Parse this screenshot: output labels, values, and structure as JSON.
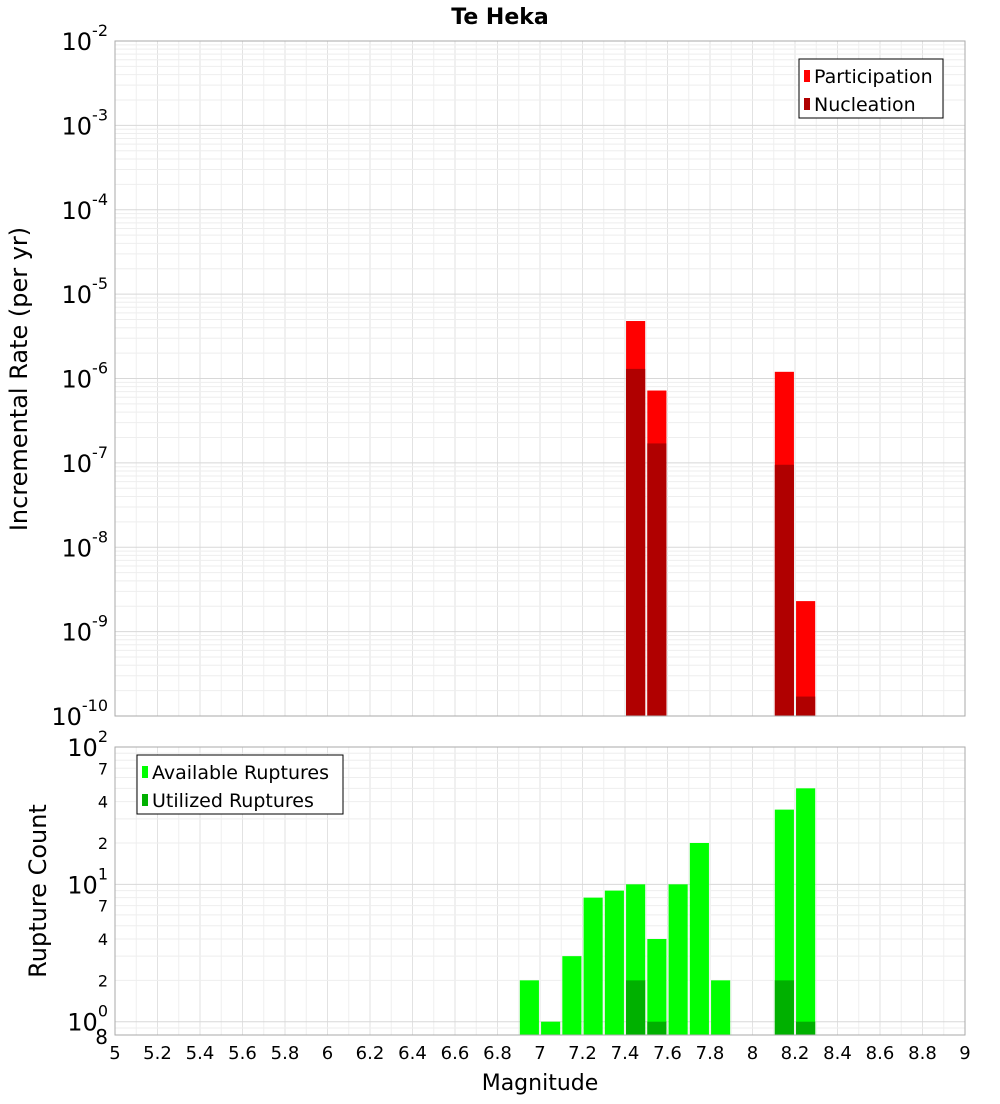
{
  "title": "Te Heka",
  "chart_data": [
    {
      "type": "bar",
      "ylabel": "Incremental Rate (per yr)",
      "yscale": "log",
      "ylim": [
        1e-10,
        0.01
      ],
      "xlim": [
        5,
        9
      ],
      "grid": true,
      "legend_position": "top-right",
      "series": [
        {
          "name": "Participation",
          "color": "#ff0000",
          "points": [
            {
              "x": 7.45,
              "y": 4.8e-06
            },
            {
              "x": 7.55,
              "y": 7.2e-07
            },
            {
              "x": 8.15,
              "y": 1.2e-06
            },
            {
              "x": 8.25,
              "y": 2.3e-09
            }
          ]
        },
        {
          "name": "Nucleation",
          "color": "#b00000",
          "points": [
            {
              "x": 7.45,
              "y": 1.3e-06
            },
            {
              "x": 7.55,
              "y": 1.7e-07
            },
            {
              "x": 8.15,
              "y": 9.5e-08
            },
            {
              "x": 8.25,
              "y": 1.7e-10
            }
          ]
        }
      ],
      "y_major_ticks": [
        {
          "value": 1e-10,
          "base": "10",
          "exp": "-10"
        },
        {
          "value": 1e-09,
          "base": "10",
          "exp": "-9"
        },
        {
          "value": 1e-08,
          "base": "10",
          "exp": "-8"
        },
        {
          "value": 1e-07,
          "base": "10",
          "exp": "-7"
        },
        {
          "value": 1e-06,
          "base": "10",
          "exp": "-6"
        },
        {
          "value": 1e-05,
          "base": "10",
          "exp": "-5"
        },
        {
          "value": 0.0001,
          "base": "10",
          "exp": "-4"
        },
        {
          "value": 0.001,
          "base": "10",
          "exp": "-3"
        },
        {
          "value": 0.01,
          "base": "10",
          "exp": "-2"
        }
      ]
    },
    {
      "type": "bar",
      "xlabel": "Magnitude",
      "ylabel": "Rupture Count",
      "yscale": "log",
      "ylim": [
        0.8,
        100
      ],
      "xlim": [
        5,
        9
      ],
      "grid": true,
      "legend_position": "top-left",
      "series": [
        {
          "name": "Available Ruptures",
          "color": "#00ff00",
          "points": [
            {
              "x": 6.95,
              "y": 2
            },
            {
              "x": 7.05,
              "y": 1
            },
            {
              "x": 7.15,
              "y": 3
            },
            {
              "x": 7.25,
              "y": 8
            },
            {
              "x": 7.35,
              "y": 9
            },
            {
              "x": 7.45,
              "y": 10
            },
            {
              "x": 7.55,
              "y": 4
            },
            {
              "x": 7.65,
              "y": 10
            },
            {
              "x": 7.75,
              "y": 20
            },
            {
              "x": 7.85,
              "y": 2
            },
            {
              "x": 8.15,
              "y": 35
            },
            {
              "x": 8.25,
              "y": 50
            }
          ]
        },
        {
          "name": "Utilized Ruptures",
          "color": "#00b000",
          "points": [
            {
              "x": 7.45,
              "y": 2
            },
            {
              "x": 7.55,
              "y": 1
            },
            {
              "x": 8.15,
              "y": 2
            },
            {
              "x": 8.25,
              "y": 1
            }
          ]
        }
      ],
      "y_major_ticks": [
        {
          "value": 1,
          "base": "10",
          "exp": "0"
        },
        {
          "value": 10,
          "base": "10",
          "exp": "1"
        },
        {
          "value": 100,
          "base": "10",
          "exp": "2"
        }
      ],
      "y_minor_ticks": [
        {
          "value": 0.8,
          "label": "8"
        },
        {
          "value": 2,
          "label": "2"
        },
        {
          "value": 4,
          "label": "4"
        },
        {
          "value": 7,
          "label": "7"
        },
        {
          "value": 20,
          "label": "2"
        },
        {
          "value": 40,
          "label": "4"
        },
        {
          "value": 70,
          "label": "7"
        }
      ],
      "x_ticks": [
        "5",
        "5.2",
        "5.4",
        "5.6",
        "5.8",
        "6",
        "6.2",
        "6.4",
        "6.6",
        "6.8",
        "7",
        "7.2",
        "7.4",
        "7.6",
        "7.8",
        "8",
        "8.2",
        "8.4",
        "8.6",
        "8.8",
        "9"
      ]
    }
  ]
}
